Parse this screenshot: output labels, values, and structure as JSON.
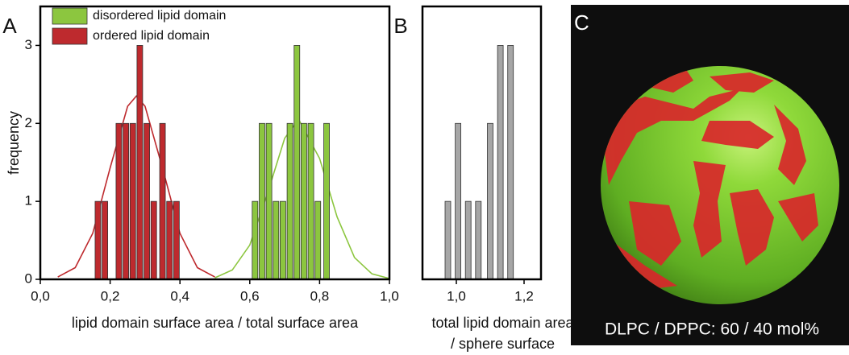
{
  "chart_data": [
    {
      "type": "bar",
      "panel_label": "A",
      "xlabel": [
        "lipid domain surface area / total surface area"
      ],
      "ylabel": "frequency",
      "xlim": [
        0,
        1
      ],
      "ylim": [
        0,
        3.5
      ],
      "xticks": [
        {
          "value": 0,
          "label": "0,0"
        },
        {
          "value": 0.2,
          "label": "0,2"
        },
        {
          "value": 0.4,
          "label": "0,4"
        },
        {
          "value": 0.6,
          "label": "0,6"
        },
        {
          "value": 0.8,
          "label": "0,8"
        },
        {
          "value": 1,
          "label": "1,0"
        }
      ],
      "yticks": [
        0,
        1,
        2,
        3
      ],
      "legend": "upper left",
      "series": [
        {
          "name": "disordered lipid domain",
          "color": "#8cc63f",
          "x": [
            0.615,
            0.635,
            0.655,
            0.675,
            0.695,
            0.715,
            0.735,
            0.755,
            0.775,
            0.795,
            0.82
          ],
          "values": [
            1,
            2,
            2,
            1,
            1,
            2,
            3,
            2,
            2,
            1,
            2
          ],
          "curve": {
            "x": [
              0.5,
              0.55,
              0.6,
              0.65,
              0.7,
              0.74,
              0.8,
              0.85,
              0.9,
              0.95,
              1.0
            ],
            "values": [
              0.02,
              0.12,
              0.44,
              1.09,
              1.81,
              2.05,
              1.55,
              0.8,
              0.28,
              0.07,
              0.01
            ]
          }
        },
        {
          "name": "ordered lipid domain",
          "color": "#be2a2e",
          "x": [
            0.165,
            0.185,
            0.225,
            0.245,
            0.265,
            0.285,
            0.305,
            0.325,
            0.35,
            0.37,
            0.39
          ],
          "values": [
            1,
            1,
            2,
            2,
            2,
            3,
            2,
            1,
            2,
            1,
            1
          ],
          "curve": {
            "x": [
              0.05,
              0.1,
              0.15,
              0.2,
              0.25,
              0.275,
              0.3,
              0.35,
              0.4,
              0.45,
              0.5
            ],
            "values": [
              0.03,
              0.15,
              0.59,
              1.43,
              2.22,
              2.35,
              2.22,
              1.43,
              0.59,
              0.15,
              0.03
            ]
          }
        }
      ]
    },
    {
      "type": "bar",
      "panel_label": "B",
      "xlabel": [
        "total lipid domain area",
        "/ sphere surface"
      ],
      "xlim": [
        0.9,
        1.25
      ],
      "ylim": [
        0,
        3.5
      ],
      "xticks": [
        {
          "value": 1,
          "label": "1,0"
        },
        {
          "value": 1.2,
          "label": "1,2"
        }
      ],
      "series": [
        {
          "color": "#a6a6a6",
          "x": [
            0.975,
            1.005,
            1.035,
            1.065,
            1.1,
            1.13,
            1.16
          ],
          "values": [
            1,
            2,
            1,
            1,
            2,
            3,
            3
          ]
        }
      ]
    }
  ],
  "panel_c": {
    "label": "C",
    "caption": "DLPC / DPPC: 60 / 40 mol%"
  }
}
